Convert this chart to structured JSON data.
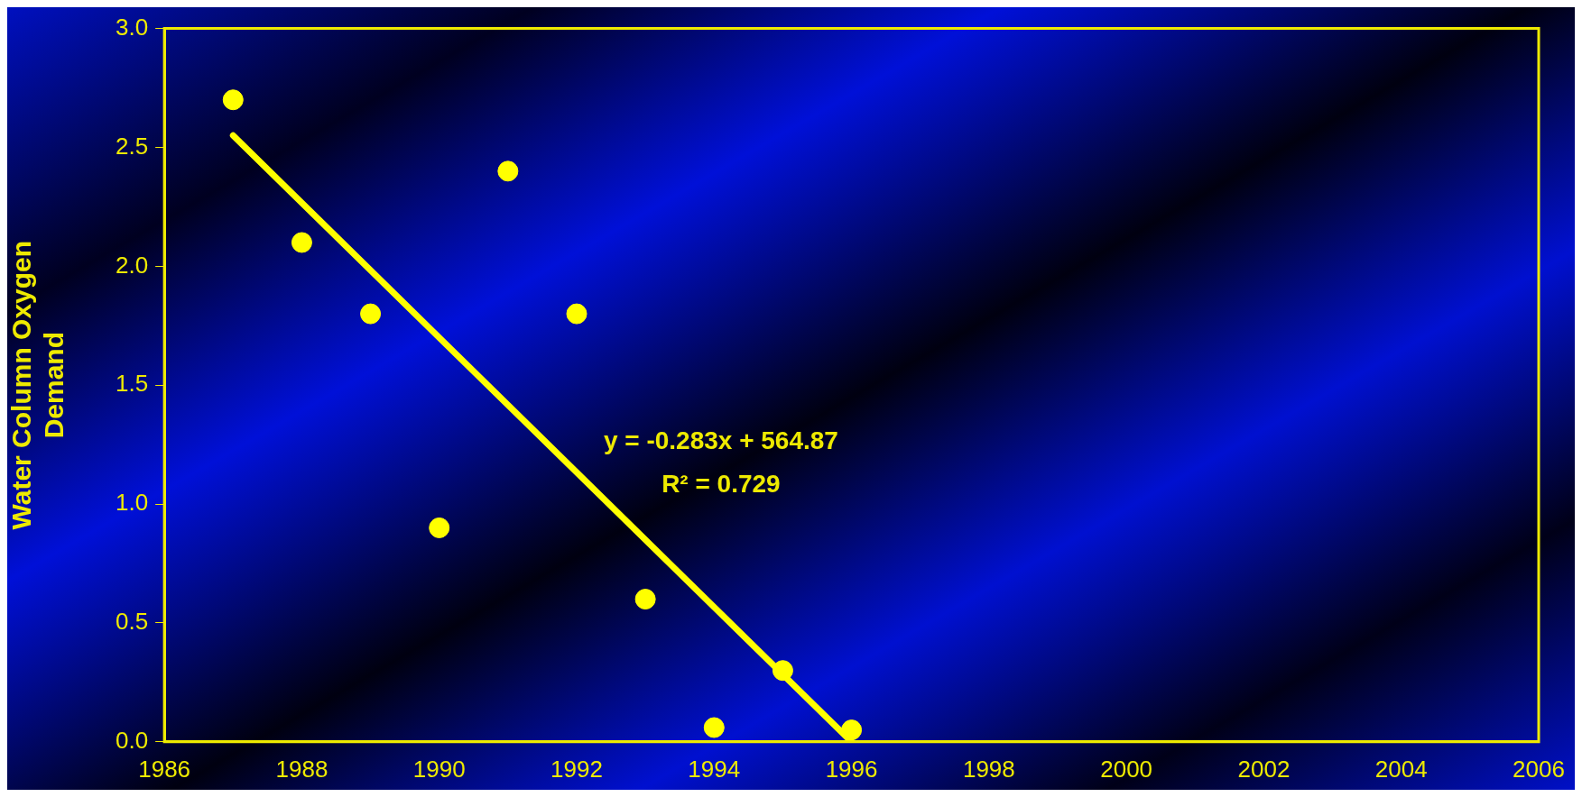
{
  "chart_data": {
    "type": "scatter",
    "ylabel": "Water Column Oxygen Demand",
    "series": [
      {
        "type": "scatter",
        "color": "#ffff00",
        "marker": "circle",
        "x": [
          1987,
          1988,
          1989,
          1990,
          1991,
          1992,
          1993,
          1994,
          1995,
          1996
        ],
        "values": [
          2.7,
          2.1,
          1.8,
          0.9,
          2.4,
          1.8,
          0.6,
          0.06,
          0.3,
          0.05
        ]
      },
      {
        "type": "line",
        "color": "#ffff00",
        "marker": "none",
        "line_style": "solid",
        "x": [
          1987,
          1996
        ],
        "values": [
          2.55,
          0.0
        ]
      }
    ],
    "xlim": [
      1986,
      2006
    ],
    "xticks": [
      1986,
      1988,
      1990,
      1992,
      1994,
      1996,
      1998,
      2000,
      2002,
      2004,
      2006
    ],
    "ylim": [
      0,
      3
    ],
    "yticks": [
      {
        "value": 0,
        "label": "0.0"
      },
      {
        "value": 0.5,
        "label": "0.5"
      },
      {
        "value": 1,
        "label": "1.0"
      },
      {
        "value": 1.5,
        "label": "1.5"
      },
      {
        "value": 2,
        "label": "2.0"
      },
      {
        "value": 2.5,
        "label": "2.5"
      },
      {
        "value": 3,
        "label": "3.0"
      }
    ],
    "annotations": [
      "y = -0.283x + 564.87",
      "R² = 0.729"
    ],
    "legend": false
  }
}
